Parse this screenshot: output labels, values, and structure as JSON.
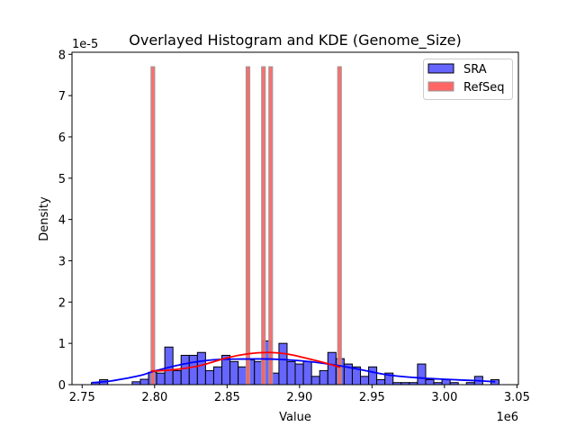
{
  "chart_data": {
    "type": "bar",
    "title": "Overlayed Histogram and KDE (Genome_Size)",
    "xlabel": "Value",
    "ylabel": "Density",
    "x_offset_label": "1e6",
    "y_offset_label": "1e-5",
    "xlim": [
      2.743,
      3.051
    ],
    "ylim": [
      0,
      8.05
    ],
    "x_ticks": [
      2.75,
      2.8,
      2.85,
      2.9,
      2.95,
      3.0,
      3.05
    ],
    "x_tick_labels": [
      "2.75",
      "2.80",
      "2.85",
      "2.90",
      "2.95",
      "3.00",
      "3.05"
    ],
    "y_ticks": [
      0,
      1,
      2,
      3,
      4,
      5,
      6,
      7,
      8
    ],
    "y_tick_labels": [
      "0",
      "1",
      "2",
      "3",
      "4",
      "5",
      "6",
      "7",
      "8"
    ],
    "grid": false,
    "legend_position": "top-right",
    "series": [
      {
        "name": "SRA",
        "color": "#6666ff",
        "edge_color": "#000000",
        "kde_color": "#0000ff",
        "bin_start": 2.7564,
        "bin_width": 0.005625,
        "values": [
          0.05,
          0.12,
          0,
          0,
          0,
          0.07,
          0.13,
          0.3,
          0.28,
          0.91,
          0.34,
          0.71,
          0.71,
          0.78,
          0.34,
          0.43,
          0.71,
          0.56,
          0.43,
          0.6,
          0.56,
          1.06,
          0.28,
          1.0,
          0.56,
          0.5,
          0.56,
          0.2,
          0.34,
          0.78,
          0.63,
          0.5,
          0.43,
          0.2,
          0.43,
          0.12,
          0.28,
          0.05,
          0.05,
          0.05,
          0.5,
          0.12,
          0.05,
          0.12,
          0.05,
          0,
          0.05,
          0.2,
          0,
          0.12
        ],
        "kde": {
          "x": [
            2.757,
            2.77,
            2.79,
            2.8,
            2.82,
            2.84,
            2.86,
            2.88,
            2.9,
            2.92,
            2.94,
            2.96,
            2.98,
            3.0,
            3.02,
            3.035
          ],
          "y": [
            0.05,
            0.09,
            0.22,
            0.33,
            0.5,
            0.6,
            0.62,
            0.62,
            0.58,
            0.5,
            0.38,
            0.24,
            0.17,
            0.13,
            0.1,
            0.07
          ]
        }
      },
      {
        "name": "RefSeq",
        "color": "#ff6666",
        "edge_color": "#999999",
        "kde_color": "#ff0000",
        "bin_width": 0.00258,
        "bin_lefts": [
          2.7975,
          2.8631,
          2.8738,
          2.8788,
          2.9263
        ],
        "values": [
          7.7,
          7.7,
          7.7,
          7.7,
          7.7
        ],
        "kde": {
          "x": [
            2.7975,
            2.81,
            2.83,
            2.85,
            2.865,
            2.878,
            2.89,
            2.9,
            2.915,
            2.928
          ],
          "y": [
            0.33,
            0.35,
            0.45,
            0.65,
            0.75,
            0.78,
            0.75,
            0.68,
            0.55,
            0.42
          ]
        }
      }
    ]
  }
}
